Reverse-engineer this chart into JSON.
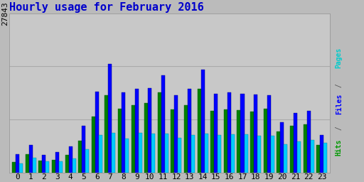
{
  "title": "Hourly usage for February 2016",
  "hours": [
    0,
    1,
    2,
    3,
    4,
    5,
    6,
    7,
    8,
    9,
    10,
    11,
    12,
    13,
    14,
    15,
    16,
    17,
    18,
    19,
    20,
    21,
    22,
    23
  ],
  "pages": [
    1800,
    3200,
    2000,
    2200,
    3000,
    5500,
    9800,
    13500,
    11200,
    11800,
    12200,
    14000,
    11000,
    11800,
    14600,
    10800,
    11000,
    10900,
    10700,
    11200,
    7200,
    8200,
    8400,
    4800
  ],
  "files": [
    3200,
    4800,
    3100,
    3600,
    4600,
    8200,
    14200,
    19000,
    14000,
    14600,
    14800,
    17000,
    13500,
    14600,
    18000,
    13800,
    14000,
    13800,
    13600,
    13500,
    8800,
    10400,
    10800,
    6600
  ],
  "hits": [
    1600,
    2500,
    1900,
    1900,
    2400,
    4100,
    6500,
    6900,
    5900,
    6900,
    6800,
    6800,
    6100,
    6500,
    6800,
    6600,
    6700,
    6700,
    6400,
    6400,
    4900,
    5400,
    5700,
    5200
  ],
  "color_pages": "#008000",
  "color_files": "#0000ff",
  "color_hits": "#00ccff",
  "bg_color": "#bbbbbb",
  "plot_bg": "#c8c8c8",
  "title_color": "#0000cc",
  "ytick_label": "27843",
  "ymax": 27843,
  "title_fontsize": 11,
  "tick_fontsize": 8,
  "bar_width": 0.27,
  "label_pages_color": "#00cccc",
  "label_files_color": "#0000ff",
  "label_hits_color": "#009900"
}
